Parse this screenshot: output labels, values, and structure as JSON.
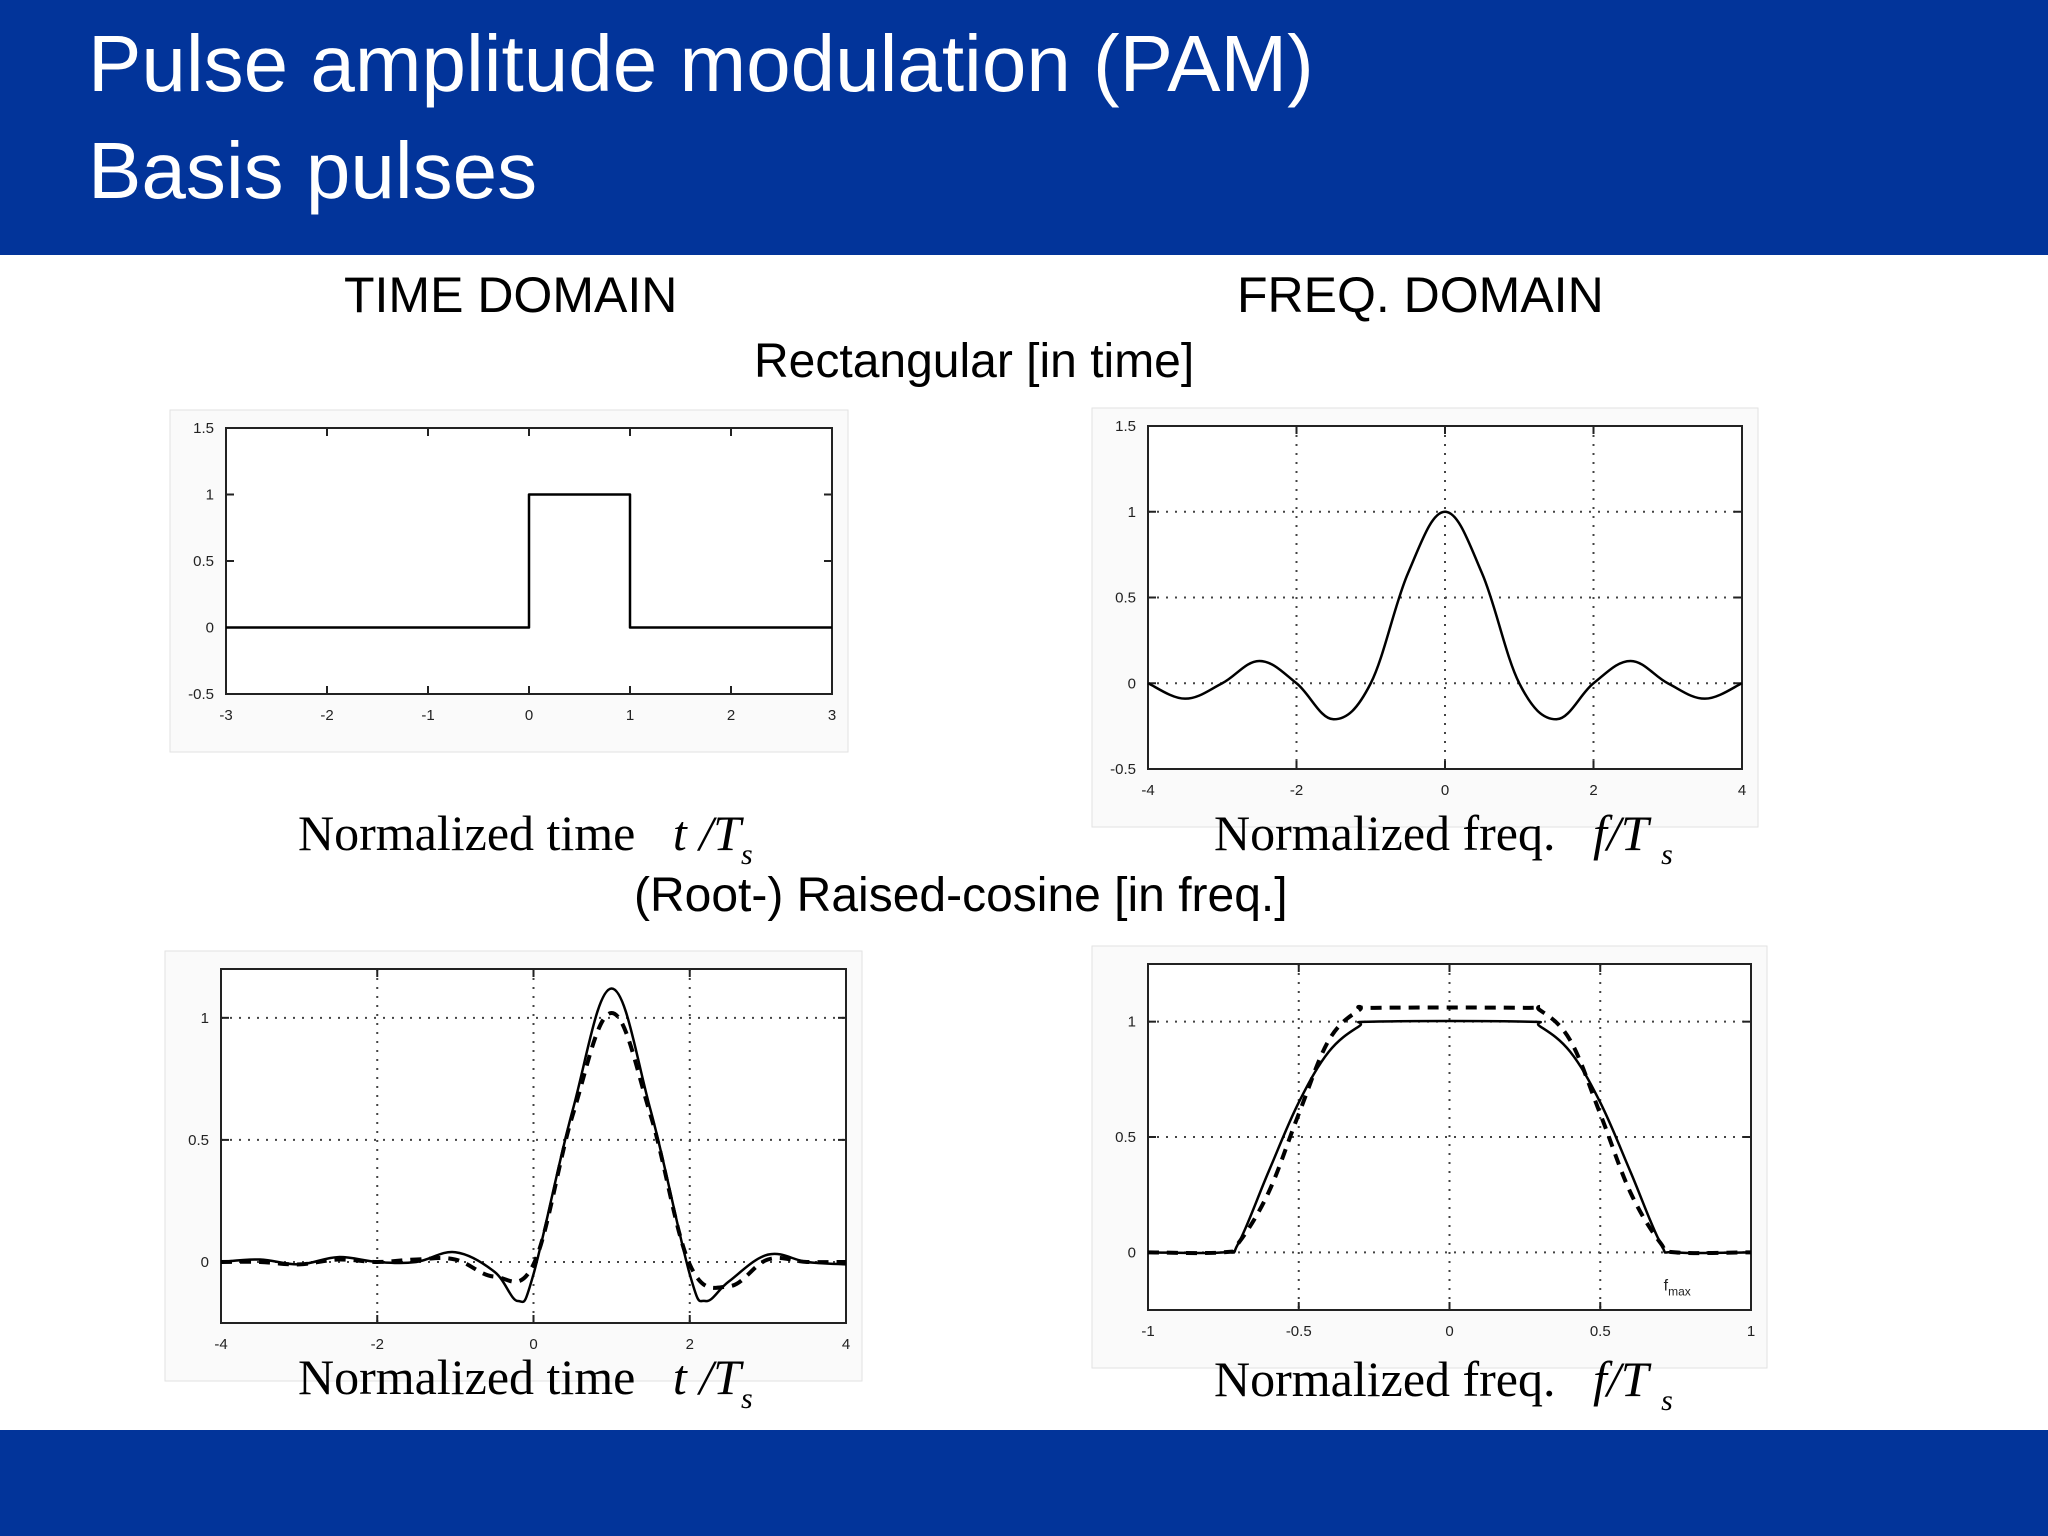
{
  "slide": {
    "title_line1": "Pulse amplitude modulation (PAM)",
    "title_line2": "Basis pulses",
    "col_time": "TIME DOMAIN",
    "col_freq": "FREQ. DOMAIN",
    "section_rect": "Rectangular [in time]",
    "section_rc": "(Root-) Raised-cosine [in freq.]",
    "xlabel_time_text": "Normalized time",
    "xlabel_time_sym": "t /T",
    "xlabel_freq_text": "Normalized freq.",
    "xlabel_freq_sym": "f/T",
    "xlabel_sub": "s",
    "fmax_label": "f"
  },
  "colors": {
    "header": "#02349a",
    "grid": "#444444",
    "line": "#000000"
  },
  "chart_data": [
    {
      "id": "rect-time",
      "type": "line",
      "xlim": [
        -3,
        3
      ],
      "ylim": [
        -0.5,
        1.5
      ],
      "xticks": [
        "-3",
        "-2",
        "-1",
        "0",
        "1",
        "2",
        "3"
      ],
      "yticks": [
        "-0.5",
        "0",
        "0.5",
        "1",
        "1.5"
      ],
      "grid": false,
      "series": [
        {
          "style": "solid",
          "x": [
            -3,
            0,
            0,
            1,
            1,
            3
          ],
          "y": [
            0,
            0,
            1,
            1,
            0,
            0
          ]
        }
      ]
    },
    {
      "id": "rect-freq",
      "type": "line",
      "xlim": [
        -4,
        4
      ],
      "ylim": [
        -0.5,
        1.5
      ],
      "xticks": [
        "-4",
        "-2",
        "0",
        "2",
        "4"
      ],
      "yticks": [
        "-0.5",
        "0",
        "0.5",
        "1",
        "1.5"
      ],
      "grid": true,
      "series": [
        {
          "style": "solid",
          "x": [
            -4,
            -3.5,
            -3,
            -2.5,
            -2,
            -1.5,
            -1,
            -0.5,
            0,
            0.5,
            1,
            1.5,
            2,
            2.5,
            3,
            3.5,
            4
          ],
          "y": [
            0,
            -0.09,
            0,
            0.13,
            0,
            -0.21,
            0,
            0.64,
            1,
            0.64,
            0,
            -0.21,
            0,
            0.13,
            0,
            -0.09,
            0
          ]
        }
      ]
    },
    {
      "id": "rc-time",
      "type": "line",
      "xlim": [
        -4,
        4
      ],
      "ylim": [
        -0.25,
        1.2
      ],
      "xticks": [
        "-4",
        "-2",
        "0",
        "2",
        "4"
      ],
      "yticks": [
        "0",
        "0.5",
        "1"
      ],
      "grid": true,
      "series": [
        {
          "style": "solid",
          "x": [
            -4,
            -3.5,
            -3,
            -2.5,
            -2,
            -1.5,
            -1,
            -0.5,
            -0.2,
            0,
            0.5,
            1,
            1.5,
            2,
            2.2,
            2.5,
            3,
            3.5,
            4
          ],
          "y": [
            0,
            0.01,
            -0.01,
            0.02,
            0,
            0,
            0.04,
            -0.04,
            -0.16,
            -0.05,
            0.62,
            1.12,
            0.62,
            -0.05,
            -0.16,
            -0.08,
            0.03,
            0,
            -0.01
          ]
        },
        {
          "style": "dashed",
          "x": [
            -4,
            -3.5,
            -3,
            -2.5,
            -2,
            -1.5,
            -1,
            -0.5,
            0,
            0.5,
            1,
            1.5,
            2,
            2.5,
            3,
            3.5,
            4
          ],
          "y": [
            0,
            0,
            -0.01,
            0.01,
            0,
            0.01,
            0.01,
            -0.06,
            -0.01,
            0.6,
            1.02,
            0.6,
            -0.01,
            -0.1,
            0.01,
            0,
            0
          ]
        }
      ]
    },
    {
      "id": "rc-freq",
      "type": "line",
      "xlim": [
        -1,
        1
      ],
      "ylim": [
        -0.25,
        1.25
      ],
      "xticks": [
        "-1",
        "-0.5",
        "0",
        "0.5",
        "1"
      ],
      "yticks": [
        "0",
        "0.5",
        "1"
      ],
      "grid": true,
      "series": [
        {
          "style": "solid",
          "x": [
            -1,
            -0.75,
            -0.7,
            -0.6,
            -0.5,
            -0.4,
            -0.3,
            -0.25,
            0.25,
            0.3,
            0.4,
            0.5,
            0.6,
            0.7,
            0.75,
            1
          ],
          "y": [
            0,
            0,
            0.04,
            0.35,
            0.65,
            0.87,
            0.98,
            1,
            1,
            0.98,
            0.87,
            0.65,
            0.35,
            0.04,
            0,
            0
          ]
        },
        {
          "style": "dashed",
          "x": [
            -1,
            -0.75,
            -0.7,
            -0.6,
            -0.5,
            -0.4,
            -0.3,
            -0.25,
            0.25,
            0.3,
            0.4,
            0.5,
            0.6,
            0.7,
            0.75,
            1
          ],
          "y": [
            0,
            0,
            0.04,
            0.26,
            0.6,
            0.92,
            1.05,
            1.06,
            1.06,
            1.05,
            0.92,
            0.6,
            0.26,
            0.04,
            0,
            0
          ]
        }
      ]
    }
  ]
}
